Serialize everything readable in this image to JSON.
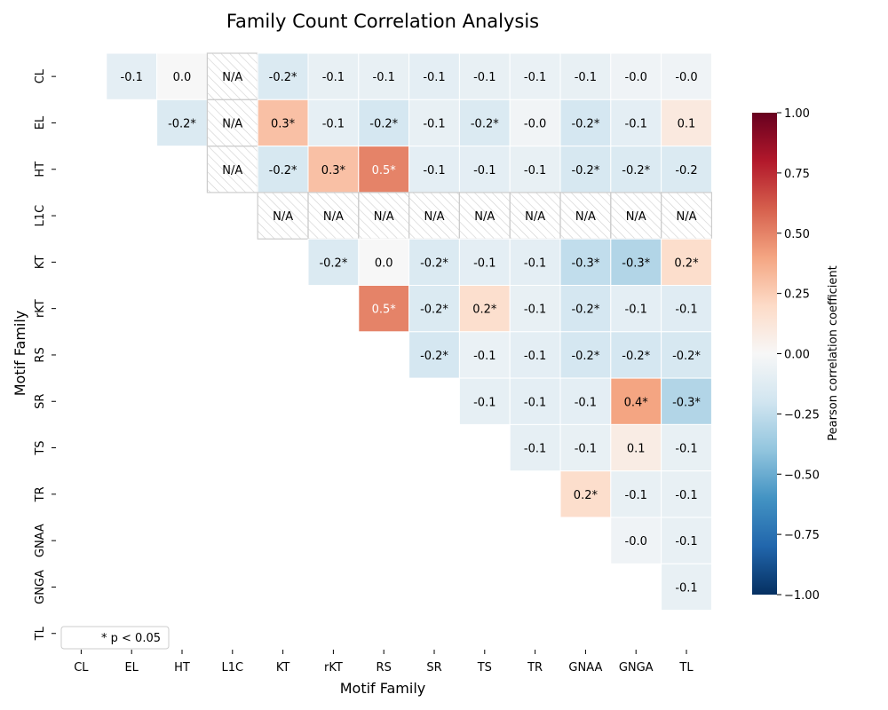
{
  "chart_data": {
    "type": "heatmap",
    "title": "Family Count Correlation Analysis",
    "xlabel": "Motif Family",
    "ylabel": "Motif Family",
    "categories": [
      "CL",
      "EL",
      "HT",
      "L1C",
      "KT",
      "rKT",
      "RS",
      "SR",
      "TS",
      "TR",
      "GNAA",
      "GNGA",
      "TL"
    ],
    "na_label": "N/A",
    "legend": {
      "text": "* p < 0.05",
      "placement": "bottom-left"
    },
    "colorbar": {
      "label": "Pearson correlation coefficient",
      "range": [
        -1.0,
        1.0
      ],
      "ticks": [
        1.0,
        0.75,
        0.5,
        0.25,
        0.0,
        -0.25,
        -0.5,
        -0.75,
        -1.0
      ],
      "tick_labels": [
        "1.00",
        "0.75",
        "0.50",
        "0.25",
        "0.00",
        "−0.25",
        "−0.50",
        "−0.75",
        "−1.00"
      ]
    },
    "colormap": [
      "#053061",
      "#2166ac",
      "#4393c3",
      "#92c5de",
      "#d1e5f0",
      "#f7f7f7",
      "#fddbc7",
      "#f4a582",
      "#d6604d",
      "#b2182b",
      "#67001f"
    ],
    "na_border_color": "#cccccc",
    "cells": [
      {
        "row": "CL",
        "col": "EL",
        "value": -0.1,
        "label": "-0.1"
      },
      {
        "row": "CL",
        "col": "HT",
        "value": 0.0,
        "label": "0.0"
      },
      {
        "row": "CL",
        "col": "L1C",
        "value": null,
        "label": "N/A"
      },
      {
        "row": "CL",
        "col": "KT",
        "value": -0.15,
        "label": "-0.2*"
      },
      {
        "row": "CL",
        "col": "rKT",
        "value": -0.08,
        "label": "-0.1"
      },
      {
        "row": "CL",
        "col": "RS",
        "value": -0.08,
        "label": "-0.1"
      },
      {
        "row": "CL",
        "col": "SR",
        "value": -0.1,
        "label": "-0.1"
      },
      {
        "row": "CL",
        "col": "TS",
        "value": -0.08,
        "label": "-0.1"
      },
      {
        "row": "CL",
        "col": "TR",
        "value": -0.07,
        "label": "-0.1"
      },
      {
        "row": "CL",
        "col": "GNAA",
        "value": -0.08,
        "label": "-0.1"
      },
      {
        "row": "CL",
        "col": "GNGA",
        "value": -0.04,
        "label": "-0.0"
      },
      {
        "row": "CL",
        "col": "TL",
        "value": -0.04,
        "label": "-0.0"
      },
      {
        "row": "EL",
        "col": "HT",
        "value": -0.15,
        "label": "-0.2*"
      },
      {
        "row": "EL",
        "col": "L1C",
        "value": null,
        "label": "N/A"
      },
      {
        "row": "EL",
        "col": "KT",
        "value": 0.3,
        "label": "0.3*"
      },
      {
        "row": "EL",
        "col": "rKT",
        "value": -0.09,
        "label": "-0.1"
      },
      {
        "row": "EL",
        "col": "RS",
        "value": -0.18,
        "label": "-0.2*"
      },
      {
        "row": "EL",
        "col": "SR",
        "value": -0.08,
        "label": "-0.1"
      },
      {
        "row": "EL",
        "col": "TS",
        "value": -0.15,
        "label": "-0.2*"
      },
      {
        "row": "EL",
        "col": "TR",
        "value": -0.03,
        "label": "-0.0"
      },
      {
        "row": "EL",
        "col": "GNAA",
        "value": -0.18,
        "label": "-0.2*"
      },
      {
        "row": "EL",
        "col": "GNGA",
        "value": -0.1,
        "label": "-0.1"
      },
      {
        "row": "EL",
        "col": "TL",
        "value": 0.1,
        "label": "0.1"
      },
      {
        "row": "HT",
        "col": "L1C",
        "value": null,
        "label": "N/A"
      },
      {
        "row": "HT",
        "col": "KT",
        "value": -0.17,
        "label": "-0.2*"
      },
      {
        "row": "HT",
        "col": "rKT",
        "value": 0.3,
        "label": "0.3*"
      },
      {
        "row": "HT",
        "col": "RS",
        "value": 0.5,
        "label": "0.5*"
      },
      {
        "row": "HT",
        "col": "SR",
        "value": -0.1,
        "label": "-0.1"
      },
      {
        "row": "HT",
        "col": "TS",
        "value": -0.1,
        "label": "-0.1"
      },
      {
        "row": "HT",
        "col": "TR",
        "value": -0.08,
        "label": "-0.1"
      },
      {
        "row": "HT",
        "col": "GNAA",
        "value": -0.17,
        "label": "-0.2*"
      },
      {
        "row": "HT",
        "col": "GNGA",
        "value": -0.15,
        "label": "-0.2*"
      },
      {
        "row": "HT",
        "col": "TL",
        "value": -0.15,
        "label": "-0.2"
      },
      {
        "row": "L1C",
        "col": "KT",
        "value": null,
        "label": "N/A"
      },
      {
        "row": "L1C",
        "col": "rKT",
        "value": null,
        "label": "N/A"
      },
      {
        "row": "L1C",
        "col": "RS",
        "value": null,
        "label": "N/A"
      },
      {
        "row": "L1C",
        "col": "SR",
        "value": null,
        "label": "N/A"
      },
      {
        "row": "L1C",
        "col": "TS",
        "value": null,
        "label": "N/A"
      },
      {
        "row": "L1C",
        "col": "TR",
        "value": null,
        "label": "N/A"
      },
      {
        "row": "L1C",
        "col": "GNAA",
        "value": null,
        "label": "N/A"
      },
      {
        "row": "L1C",
        "col": "GNGA",
        "value": null,
        "label": "N/A"
      },
      {
        "row": "L1C",
        "col": "TL",
        "value": null,
        "label": "N/A"
      },
      {
        "row": "KT",
        "col": "rKT",
        "value": -0.15,
        "label": "-0.2*"
      },
      {
        "row": "KT",
        "col": "RS",
        "value": 0.0,
        "label": "0.0"
      },
      {
        "row": "KT",
        "col": "SR",
        "value": -0.15,
        "label": "-0.2*"
      },
      {
        "row": "KT",
        "col": "TS",
        "value": -0.1,
        "label": "-0.1"
      },
      {
        "row": "KT",
        "col": "TR",
        "value": -0.1,
        "label": "-0.1"
      },
      {
        "row": "KT",
        "col": "GNAA",
        "value": -0.25,
        "label": "-0.3*"
      },
      {
        "row": "KT",
        "col": "GNGA",
        "value": -0.3,
        "label": "-0.3*"
      },
      {
        "row": "KT",
        "col": "TL",
        "value": 0.18,
        "label": "0.2*"
      },
      {
        "row": "rKT",
        "col": "RS",
        "value": 0.5,
        "label": "0.5*"
      },
      {
        "row": "rKT",
        "col": "SR",
        "value": -0.15,
        "label": "-0.2*"
      },
      {
        "row": "rKT",
        "col": "TS",
        "value": 0.17,
        "label": "0.2*"
      },
      {
        "row": "rKT",
        "col": "TR",
        "value": -0.08,
        "label": "-0.1"
      },
      {
        "row": "rKT",
        "col": "GNAA",
        "value": -0.18,
        "label": "-0.2*"
      },
      {
        "row": "rKT",
        "col": "GNGA",
        "value": -0.1,
        "label": "-0.1"
      },
      {
        "row": "rKT",
        "col": "TL",
        "value": -0.12,
        "label": "-0.1"
      },
      {
        "row": "RS",
        "col": "SR",
        "value": -0.18,
        "label": "-0.2*"
      },
      {
        "row": "RS",
        "col": "TS",
        "value": -0.07,
        "label": "-0.1"
      },
      {
        "row": "RS",
        "col": "TR",
        "value": -0.1,
        "label": "-0.1"
      },
      {
        "row": "RS",
        "col": "GNAA",
        "value": -0.18,
        "label": "-0.2*"
      },
      {
        "row": "RS",
        "col": "GNGA",
        "value": -0.18,
        "label": "-0.2*"
      },
      {
        "row": "RS",
        "col": "TL",
        "value": -0.17,
        "label": "-0.2*"
      },
      {
        "row": "SR",
        "col": "TS",
        "value": -0.09,
        "label": "-0.1"
      },
      {
        "row": "SR",
        "col": "TR",
        "value": -0.1,
        "label": "-0.1"
      },
      {
        "row": "SR",
        "col": "GNAA",
        "value": -0.1,
        "label": "-0.1"
      },
      {
        "row": "SR",
        "col": "GNGA",
        "value": 0.4,
        "label": "0.4*"
      },
      {
        "row": "SR",
        "col": "TL",
        "value": -0.3,
        "label": "-0.3*"
      },
      {
        "row": "TS",
        "col": "TR",
        "value": -0.09,
        "label": "-0.1"
      },
      {
        "row": "TS",
        "col": "GNAA",
        "value": -0.08,
        "label": "-0.1"
      },
      {
        "row": "TS",
        "col": "GNGA",
        "value": 0.08,
        "label": "0.1"
      },
      {
        "row": "TS",
        "col": "TL",
        "value": -0.08,
        "label": "-0.1"
      },
      {
        "row": "TR",
        "col": "GNAA",
        "value": 0.18,
        "label": "0.2*"
      },
      {
        "row": "TR",
        "col": "GNGA",
        "value": -0.08,
        "label": "-0.1"
      },
      {
        "row": "TR",
        "col": "TL",
        "value": -0.08,
        "label": "-0.1"
      },
      {
        "row": "GNAA",
        "col": "GNGA",
        "value": -0.04,
        "label": "-0.0"
      },
      {
        "row": "GNAA",
        "col": "TL",
        "value": -0.08,
        "label": "-0.1"
      },
      {
        "row": "GNGA",
        "col": "TL",
        "value": -0.08,
        "label": "-0.1"
      }
    ]
  }
}
